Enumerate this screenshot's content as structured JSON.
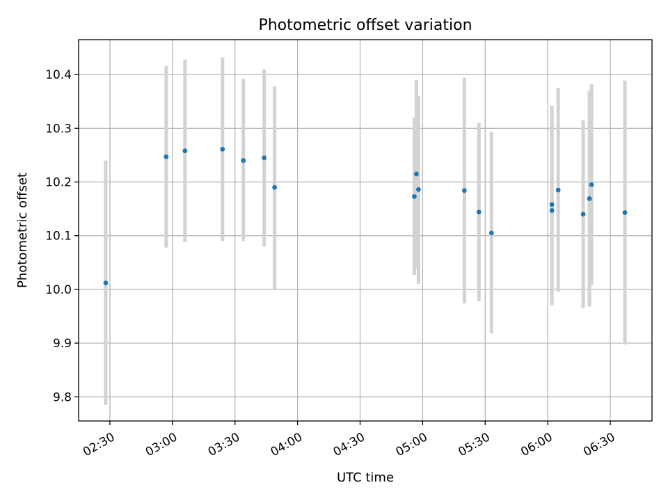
{
  "chart_data": {
    "type": "scatter",
    "title": "Photometric offset variation",
    "xlabel": "UTC time",
    "ylabel": "Photometric offset",
    "x_unit": "time (HH:MM UTC)",
    "xlim": [
      "02:15",
      "06:50"
    ],
    "ylim": [
      9.755,
      10.465
    ],
    "x_ticks": [
      "02:30",
      "03:00",
      "03:30",
      "04:00",
      "04:30",
      "05:00",
      "05:30",
      "06:00",
      "06:30"
    ],
    "y_ticks": [
      9.8,
      9.9,
      10.0,
      10.1,
      10.2,
      10.3,
      10.4
    ],
    "grid": true,
    "marker_color": "#1f77b4",
    "errorbar_color": "#d3d3d3",
    "points": [
      {
        "x": "02:28",
        "y": 10.012,
        "lo": 9.785,
        "hi": 10.24
      },
      {
        "x": "02:57",
        "y": 10.247,
        "lo": 10.078,
        "hi": 10.416
      },
      {
        "x": "03:06",
        "y": 10.258,
        "lo": 10.088,
        "hi": 10.428
      },
      {
        "x": "03:24",
        "y": 10.261,
        "lo": 10.09,
        "hi": 10.432
      },
      {
        "x": "03:34",
        "y": 10.24,
        "lo": 10.09,
        "hi": 10.392
      },
      {
        "x": "03:44",
        "y": 10.245,
        "lo": 10.08,
        "hi": 10.41
      },
      {
        "x": "03:49",
        "y": 10.19,
        "lo": 10.0,
        "hi": 10.378
      },
      {
        "x": "04:56",
        "y": 10.173,
        "lo": 10.027,
        "hi": 10.32
      },
      {
        "x": "04:57",
        "y": 10.215,
        "lo": 10.038,
        "hi": 10.39
      },
      {
        "x": "04:58",
        "y": 10.186,
        "lo": 10.01,
        "hi": 10.36
      },
      {
        "x": "05:20",
        "y": 10.184,
        "lo": 9.974,
        "hi": 10.394
      },
      {
        "x": "05:27",
        "y": 10.144,
        "lo": 9.978,
        "hi": 10.31
      },
      {
        "x": "05:33",
        "y": 10.105,
        "lo": 9.918,
        "hi": 10.293
      },
      {
        "x": "06:02",
        "y": 10.158,
        "lo": 9.975,
        "hi": 10.342
      },
      {
        "x": "06:02",
        "y": 10.147,
        "lo": 9.97,
        "hi": 10.325
      },
      {
        "x": "06:05",
        "y": 10.185,
        "lo": 9.995,
        "hi": 10.375
      },
      {
        "x": "06:17",
        "y": 10.14,
        "lo": 9.965,
        "hi": 10.315
      },
      {
        "x": "06:20",
        "y": 10.169,
        "lo": 9.968,
        "hi": 10.37
      },
      {
        "x": "06:21",
        "y": 10.195,
        "lo": 10.008,
        "hi": 10.382
      },
      {
        "x": "06:37",
        "y": 10.143,
        "lo": 9.897,
        "hi": 10.389
      }
    ]
  }
}
